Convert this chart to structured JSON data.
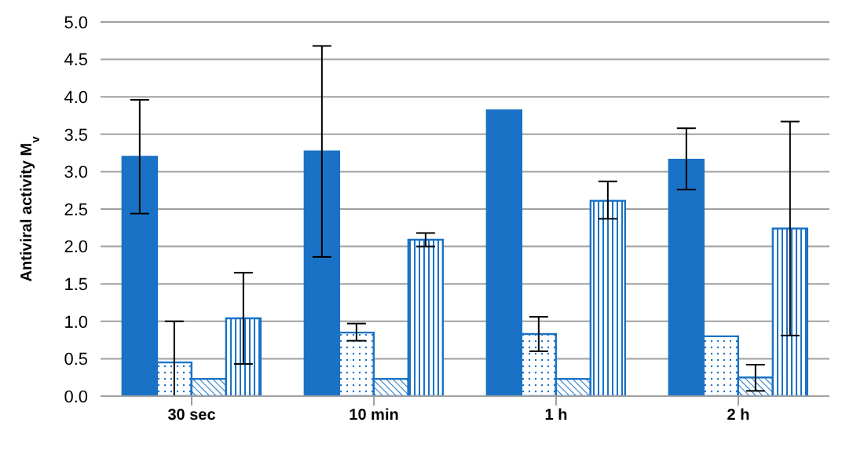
{
  "chart_data": {
    "type": "bar",
    "ylabel": "Antiviral activity M$_{v}$",
    "categories": [
      "30 sec",
      "10 min",
      "1 h",
      "2 h"
    ],
    "series": [
      {
        "color": "#1a72c6",
        "values": [
          3.2,
          3.27,
          3.82,
          3.16
        ],
        "errors": [
          [
            2.44,
            3.96
          ],
          [
            1.86,
            4.68
          ],
          null,
          [
            2.76,
            3.58
          ]
        ]
      },
      {
        "color": "#1a72c6",
        "values": [
          0.45,
          0.85,
          0.83,
          0.8
        ],
        "errors": [
          [
            0,
            1.0
          ],
          [
            0.74,
            0.97
          ],
          [
            0.6,
            1.06
          ],
          null
        ]
      },
      {
        "color": "#1a72c6",
        "values": [
          0.23,
          0.23,
          0.23,
          0.25
        ],
        "errors": [
          null,
          null,
          null,
          [
            0.07,
            0.42
          ]
        ]
      },
      {
        "color": "#1a72c6",
        "values": [
          1.04,
          2.09,
          2.61,
          2.24
        ],
        "errors": [
          [
            0.43,
            1.65
          ],
          [
            2.0,
            2.18
          ],
          [
            2.37,
            2.87
          ],
          [
            0.81,
            3.67
          ]
        ]
      }
    ],
    "ylim": [
      0,
      5
    ],
    "yticks": [
      {
        "value": 0,
        "label": "0.0"
      },
      {
        "value": 0.5,
        "label": "0.5"
      },
      {
        "value": 1,
        "label": "1.0"
      },
      {
        "value": 1.5,
        "label": "1.5"
      },
      {
        "value": 2,
        "label": "2.0"
      },
      {
        "value": 2.5,
        "label": "2.5"
      },
      {
        "value": 3,
        "label": "3.0"
      },
      {
        "value": 3.5,
        "label": "3.5"
      },
      {
        "value": 4,
        "label": "4.0"
      },
      {
        "value": 4.5,
        "label": "4.5"
      },
      {
        "value": 5,
        "label": "5.0"
      }
    ],
    "grid": "y",
    "legend": false
  }
}
